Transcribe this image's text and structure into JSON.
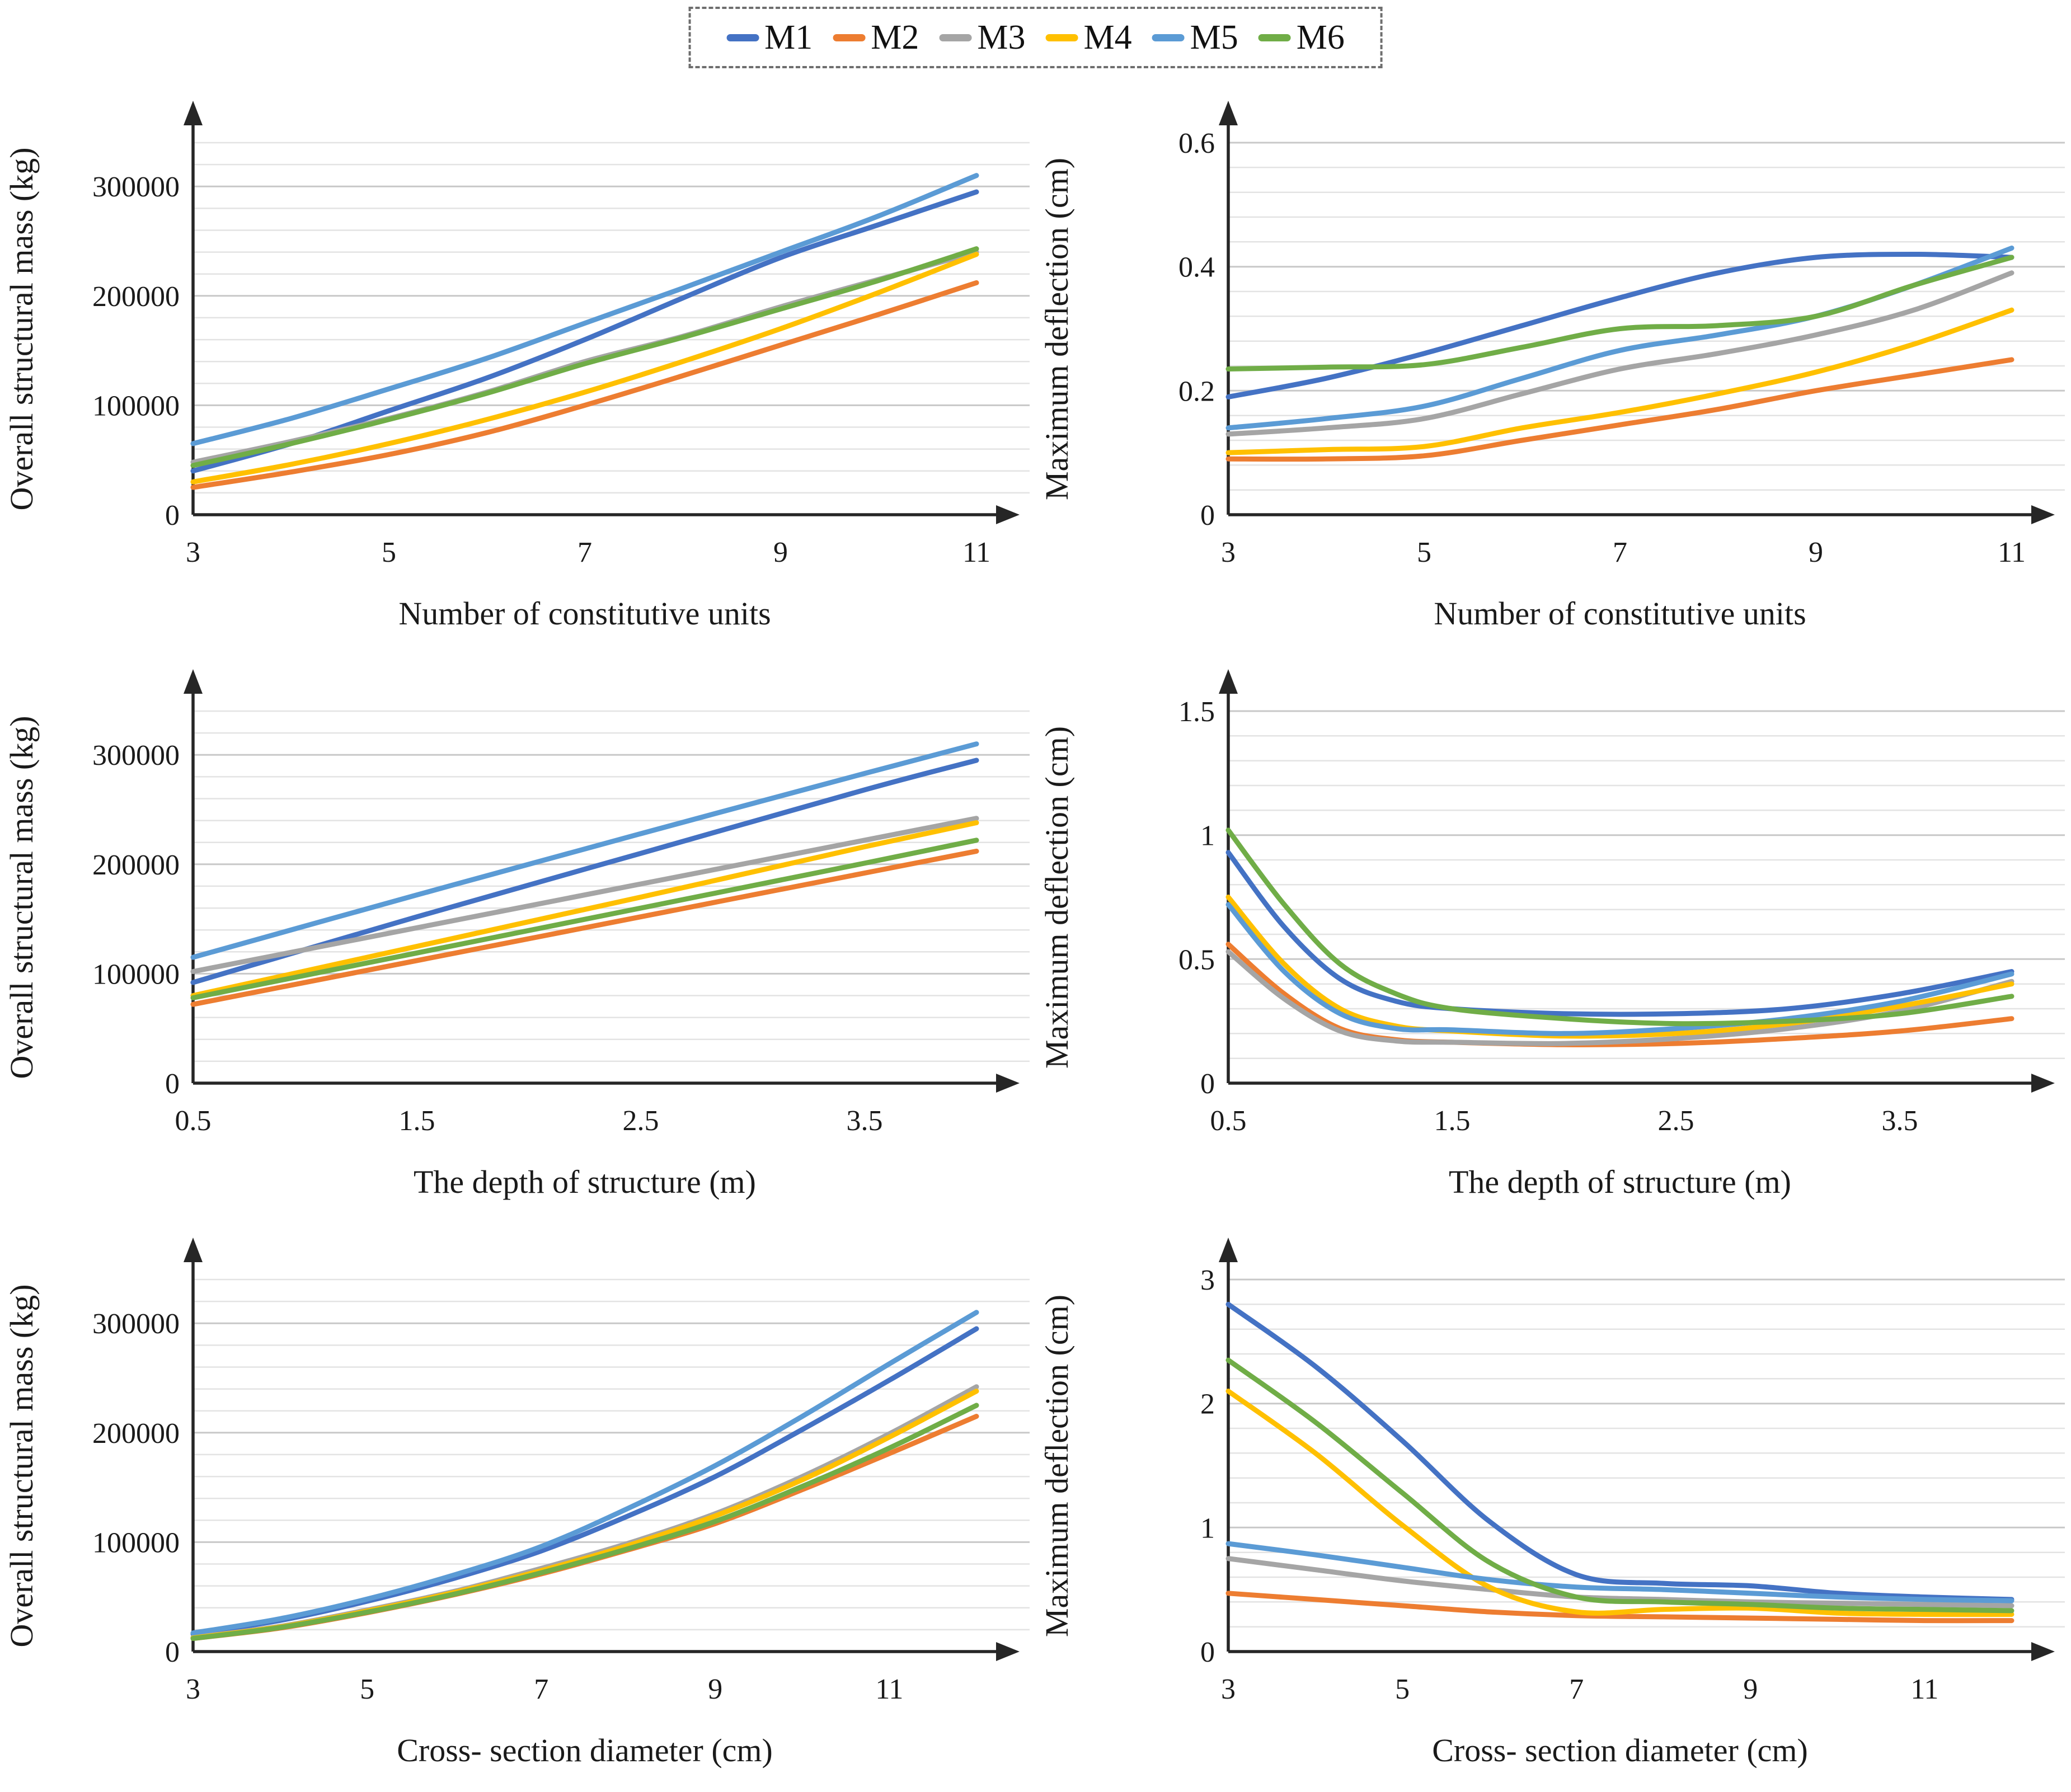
{
  "legend": {
    "items": [
      {
        "label": "M1",
        "color": "#4472C4"
      },
      {
        "label": "M2",
        "color": "#ED7D31"
      },
      {
        "label": "M3",
        "color": "#A5A5A5"
      },
      {
        "label": "M4",
        "color": "#FFC000"
      },
      {
        "label": "M5",
        "color": "#5B9BD5"
      },
      {
        "label": "M6",
        "color": "#70AD47"
      }
    ]
  },
  "colors": {
    "axis": "#262626",
    "grid_minor": "#e3e3e3",
    "grid_major": "#c8c8c8",
    "text": "#1a1a1a",
    "legend_border": "#6e6e6e"
  },
  "chart_data": [
    {
      "type": "line",
      "title": "",
      "xlabel": "Number of constitutive units",
      "ylabel": "Overall structural mass (kg)",
      "x_range": [
        3,
        11
      ],
      "x_ticks": [
        3,
        5,
        7,
        9,
        11
      ],
      "x_tick_labels": [
        "3",
        "5",
        "7",
        "9",
        "11"
      ],
      "y_max": 340000,
      "y_minor": 20000,
      "y_ticks": [
        0,
        100000,
        200000,
        300000
      ],
      "y_tick_labels": [
        "0",
        "100000",
        "200000",
        "300000"
      ],
      "x": [
        3,
        4,
        5,
        6,
        7,
        8,
        9,
        10,
        11
      ],
      "series": [
        {
          "name": "M1",
          "color": "#4472C4",
          "y": [
            40000,
            65000,
            95000,
            125000,
            160000,
            198000,
            235000,
            265000,
            295000
          ]
        },
        {
          "name": "M2",
          "color": "#ED7D31",
          "y": [
            25000,
            39000,
            55000,
            75000,
            100000,
            127000,
            155000,
            183000,
            212000
          ]
        },
        {
          "name": "M3",
          "color": "#A5A5A5",
          "y": [
            48000,
            67000,
            88000,
            112000,
            140000,
            163000,
            190000,
            215000,
            240000
          ]
        },
        {
          "name": "M4",
          "color": "#FFC000",
          "y": [
            30000,
            46000,
            65000,
            87000,
            112000,
            140000,
            170000,
            203000,
            238000
          ]
        },
        {
          "name": "M5",
          "color": "#5B9BD5",
          "y": [
            65000,
            88000,
            115000,
            143000,
            175000,
            207000,
            240000,
            273000,
            310000
          ]
        },
        {
          "name": "M6",
          "color": "#70AD47",
          "y": [
            45000,
            65000,
            87000,
            111000,
            138000,
            162000,
            188000,
            214000,
            243000
          ]
        }
      ]
    },
    {
      "type": "line",
      "title": "",
      "xlabel": "Number of constitutive units",
      "ylabel": "Maximum deflection (cm)",
      "x_range": [
        3,
        11
      ],
      "x_ticks": [
        3,
        5,
        7,
        9,
        11
      ],
      "x_tick_labels": [
        "3",
        "5",
        "7",
        "9",
        "11"
      ],
      "y_max": 0.6,
      "y_minor": 0.04,
      "y_ticks": [
        0,
        0.2,
        0.4,
        0.6
      ],
      "y_tick_labels": [
        "0",
        "0.2",
        "0.4",
        "0.6"
      ],
      "x": [
        3,
        4,
        5,
        6,
        7,
        8,
        9,
        10,
        11
      ],
      "series": [
        {
          "name": "M1",
          "color": "#4472C4",
          "y": [
            0.19,
            0.22,
            0.26,
            0.305,
            0.35,
            0.39,
            0.415,
            0.42,
            0.415
          ]
        },
        {
          "name": "M2",
          "color": "#ED7D31",
          "y": [
            0.09,
            0.09,
            0.095,
            0.12,
            0.145,
            0.17,
            0.2,
            0.225,
            0.25
          ]
        },
        {
          "name": "M3",
          "color": "#A5A5A5",
          "y": [
            0.13,
            0.14,
            0.155,
            0.195,
            0.235,
            0.26,
            0.29,
            0.33,
            0.39
          ]
        },
        {
          "name": "M4",
          "color": "#FFC000",
          "y": [
            0.1,
            0.105,
            0.11,
            0.14,
            0.165,
            0.195,
            0.23,
            0.275,
            0.33
          ]
        },
        {
          "name": "M5",
          "color": "#5B9BD5",
          "y": [
            0.14,
            0.155,
            0.175,
            0.22,
            0.265,
            0.29,
            0.32,
            0.37,
            0.43
          ]
        },
        {
          "name": "M6",
          "color": "#70AD47",
          "y": [
            0.235,
            0.238,
            0.242,
            0.27,
            0.3,
            0.305,
            0.32,
            0.37,
            0.415
          ]
        }
      ]
    },
    {
      "type": "line",
      "title": "",
      "xlabel": "The depth of structure (m)",
      "ylabel": "Overall structural mass (kg)",
      "x_range": [
        0.5,
        4.0
      ],
      "x_ticks": [
        0.5,
        1.5,
        2.5,
        3.5
      ],
      "x_tick_labels": [
        "0.5",
        "1.5",
        "2.5",
        "3.5"
      ],
      "y_max": 340000,
      "y_minor": 20000,
      "y_ticks": [
        0,
        100000,
        200000,
        300000
      ],
      "y_tick_labels": [
        "0",
        "100000",
        "200000",
        "300000"
      ],
      "x": [
        0.5,
        1.5,
        2.5,
        3.5,
        4.0
      ],
      "series": [
        {
          "name": "M1",
          "color": "#4472C4",
          "y": [
            92000,
            152000,
            210000,
            268000,
            295000
          ]
        },
        {
          "name": "M2",
          "color": "#ED7D31",
          "y": [
            72000,
            112000,
            152000,
            192000,
            212000
          ]
        },
        {
          "name": "M3",
          "color": "#A5A5A5",
          "y": [
            102000,
            142000,
            182000,
            222000,
            242000
          ]
        },
        {
          "name": "M4",
          "color": "#FFC000",
          "y": [
            80000,
            125000,
            170000,
            216000,
            238000
          ]
        },
        {
          "name": "M5",
          "color": "#5B9BD5",
          "y": [
            115000,
            172000,
            228000,
            283000,
            310000
          ]
        },
        {
          "name": "M6",
          "color": "#70AD47",
          "y": [
            78000,
            119000,
            160000,
            201000,
            222000
          ]
        }
      ]
    },
    {
      "type": "line",
      "title": "",
      "xlabel": "The depth of structure (m)",
      "ylabel": "Maximum deflection (cm)",
      "x_range": [
        0.5,
        4.0
      ],
      "x_ticks": [
        0.5,
        1.5,
        2.5,
        3.5
      ],
      "x_tick_labels": [
        "0.5",
        "1.5",
        "2.5",
        "3.5"
      ],
      "y_max": 1.5,
      "y_minor": 0.1,
      "y_ticks": [
        0,
        0.5,
        1,
        1.5
      ],
      "y_tick_labels": [
        "0",
        "0.5",
        "1",
        "1.5"
      ],
      "x": [
        0.5,
        0.75,
        1.0,
        1.25,
        1.5,
        2.0,
        2.5,
        3.0,
        3.5,
        4.0
      ],
      "series": [
        {
          "name": "M1",
          "color": "#4472C4",
          "y": [
            0.93,
            0.63,
            0.42,
            0.33,
            0.3,
            0.28,
            0.28,
            0.3,
            0.36,
            0.45
          ]
        },
        {
          "name": "M2",
          "color": "#ED7D31",
          "y": [
            0.56,
            0.36,
            0.22,
            0.175,
            0.165,
            0.155,
            0.16,
            0.18,
            0.21,
            0.26
          ]
        },
        {
          "name": "M3",
          "color": "#A5A5A5",
          "y": [
            0.53,
            0.34,
            0.21,
            0.17,
            0.165,
            0.16,
            0.18,
            0.22,
            0.29,
            0.41
          ]
        },
        {
          "name": "M4",
          "color": "#FFC000",
          "y": [
            0.75,
            0.48,
            0.3,
            0.23,
            0.21,
            0.19,
            0.2,
            0.24,
            0.31,
            0.4
          ]
        },
        {
          "name": "M5",
          "color": "#5B9BD5",
          "y": [
            0.72,
            0.45,
            0.28,
            0.22,
            0.215,
            0.2,
            0.22,
            0.26,
            0.33,
            0.44
          ]
        },
        {
          "name": "M6",
          "color": "#70AD47",
          "y": [
            1.02,
            0.72,
            0.48,
            0.36,
            0.3,
            0.26,
            0.24,
            0.25,
            0.28,
            0.35
          ]
        }
      ]
    },
    {
      "type": "line",
      "title": "",
      "xlabel": "Cross- section diameter (cm)",
      "ylabel": "Overall structural mass (kg)",
      "x_range": [
        3,
        12
      ],
      "x_ticks": [
        3,
        5,
        7,
        9,
        11
      ],
      "x_tick_labels": [
        "3",
        "5",
        "7",
        "9",
        "11"
      ],
      "y_max": 340000,
      "y_minor": 20000,
      "y_ticks": [
        0,
        100000,
        200000,
        300000
      ],
      "y_tick_labels": [
        "0",
        "100000",
        "200000",
        "300000"
      ],
      "x": [
        3,
        4,
        5,
        6,
        7,
        8,
        9,
        10,
        11,
        12
      ],
      "series": [
        {
          "name": "M1",
          "color": "#4472C4",
          "y": [
            16000,
            28500,
            46000,
            67000,
            92000,
            124000,
            160000,
            203000,
            248000,
            295000
          ]
        },
        {
          "name": "M2",
          "color": "#ED7D31",
          "y": [
            12000,
            21500,
            35500,
            52000,
            71000,
            93000,
            117000,
            148000,
            181000,
            215000
          ]
        },
        {
          "name": "M3",
          "color": "#A5A5A5",
          "y": [
            13000,
            23000,
            38000,
            55000,
            76000,
            99000,
            126000,
            160000,
            199000,
            242000
          ]
        },
        {
          "name": "M4",
          "color": "#FFC000",
          "y": [
            12500,
            22500,
            37000,
            54000,
            74000,
            97000,
            124000,
            157000,
            196000,
            238000
          ]
        },
        {
          "name": "M5",
          "color": "#5B9BD5",
          "y": [
            17000,
            30000,
            48000,
            70000,
            96000,
            131000,
            170000,
            215000,
            263000,
            310000
          ]
        },
        {
          "name": "M6",
          "color": "#70AD47",
          "y": [
            12000,
            22000,
            36000,
            52500,
            72000,
            94000,
            119000,
            151000,
            186000,
            225000
          ]
        }
      ]
    },
    {
      "type": "line",
      "title": "",
      "xlabel": "Cross- section diameter (cm)",
      "ylabel": "Maximum deflection (cm)",
      "x_range": [
        3,
        12
      ],
      "x_ticks": [
        3,
        5,
        7,
        9,
        11
      ],
      "x_tick_labels": [
        "3",
        "5",
        "7",
        "9",
        "11"
      ],
      "y_max": 3,
      "y_minor": 0.2,
      "y_ticks": [
        0,
        1,
        2,
        3
      ],
      "y_tick_labels": [
        "0",
        "1",
        "2",
        "3"
      ],
      "x": [
        3,
        4,
        5,
        6,
        7,
        8,
        9,
        10,
        11,
        12
      ],
      "series": [
        {
          "name": "M1",
          "color": "#4472C4",
          "y": [
            2.8,
            2.3,
            1.7,
            1.05,
            0.62,
            0.55,
            0.53,
            0.47,
            0.44,
            0.42
          ]
        },
        {
          "name": "M2",
          "color": "#ED7D31",
          "y": [
            0.47,
            0.42,
            0.37,
            0.32,
            0.29,
            0.28,
            0.27,
            0.26,
            0.25,
            0.25
          ]
        },
        {
          "name": "M3",
          "color": "#A5A5A5",
          "y": [
            0.75,
            0.66,
            0.57,
            0.5,
            0.44,
            0.42,
            0.4,
            0.39,
            0.38,
            0.37
          ]
        },
        {
          "name": "M4",
          "color": "#FFC000",
          "y": [
            2.1,
            1.6,
            1.02,
            0.52,
            0.32,
            0.34,
            0.35,
            0.31,
            0.3,
            0.3
          ]
        },
        {
          "name": "M5",
          "color": "#5B9BD5",
          "y": [
            0.87,
            0.78,
            0.68,
            0.58,
            0.52,
            0.5,
            0.47,
            0.44,
            0.42,
            0.41
          ]
        },
        {
          "name": "M6",
          "color": "#70AD47",
          "y": [
            2.35,
            1.85,
            1.28,
            0.72,
            0.44,
            0.4,
            0.38,
            0.35,
            0.34,
            0.33
          ]
        }
      ]
    }
  ]
}
